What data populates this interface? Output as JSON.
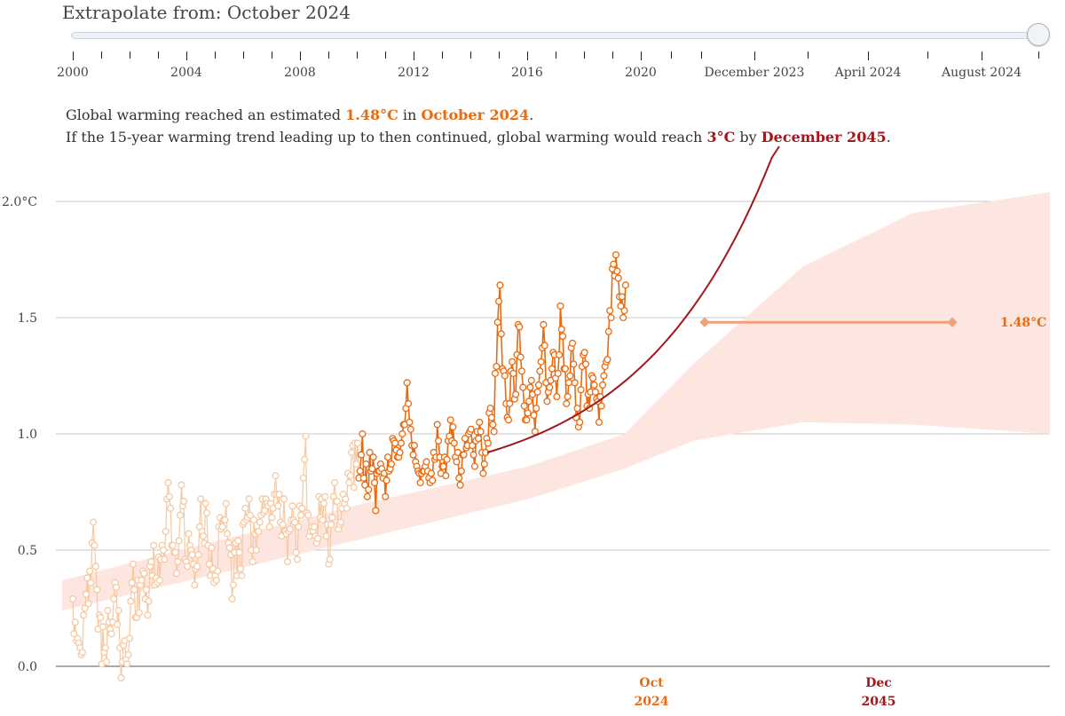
{
  "slider": {
    "title": "Extrapolate from: October 2024",
    "ticks": [
      {
        "label": "2000"
      },
      {
        "label": "2004"
      },
      {
        "label": "2008"
      },
      {
        "label": "2012"
      },
      {
        "label": "2016"
      },
      {
        "label": "2020"
      },
      {
        "label": "December 2023"
      },
      {
        "label": "April 2024"
      },
      {
        "label": "August 2024"
      }
    ],
    "value": 1.0
  },
  "summary": {
    "line1_pre": "Global warming reached an estimated ",
    "warming_value": "1.48°C",
    "line1_mid": " in ",
    "warming_date": "October 2024",
    "line1_end": ".",
    "line2_pre": "If the 15-year warming trend leading up to then continued, global warming would reach ",
    "target_value": "3°C",
    "line2_mid": " by ",
    "target_date": "December 2045",
    "line2_end": "."
  },
  "colors": {
    "orange": "#ea6a10",
    "orange_faded": "#f6c9a3",
    "band": "#fde6df",
    "trend": "#a3161b",
    "marker": "#f0a07a"
  },
  "chart_data": {
    "type": "scatter",
    "y_ticks": [
      {
        "value": 2.0,
        "label": "2.0°C"
      },
      {
        "value": 1.5,
        "label": "1.5"
      },
      {
        "value": 1.0,
        "label": "1.0"
      },
      {
        "value": 0.5,
        "label": "0.5"
      },
      {
        "value": 0.0,
        "label": "0.0"
      }
    ],
    "ylim": [
      0.0,
      2.0
    ],
    "xlim": [
      1999.5,
      2017.5
    ],
    "x_labels": [
      {
        "x": 2009.75,
        "line1": "Oct",
        "line2": "2024",
        "color": "#ea6a10"
      },
      {
        "x": 2016.75,
        "line1": "Dec",
        "line2": "2045",
        "color": "#a3161b"
      }
    ],
    "current_level": {
      "value": 1.48,
      "label": "1.48°C",
      "x_start": 2011.3,
      "x_end": 2019.0
    },
    "trend": {
      "x_start": 2000.0,
      "x_end": 2010.3,
      "y_start": 0.92,
      "y_end": 3.0
    },
    "band_upper": [
      [
        1999.5,
        0.37
      ],
      [
        2002,
        0.52
      ],
      [
        2005,
        0.7
      ],
      [
        2008,
        0.86
      ],
      [
        2009.75,
        1.0
      ],
      [
        2011,
        1.3
      ],
      [
        2013,
        1.72
      ],
      [
        2015,
        1.95
      ],
      [
        2017.5,
        2.04
      ]
    ],
    "band_lower": [
      [
        1999.5,
        0.24
      ],
      [
        2002,
        0.38
      ],
      [
        2005,
        0.55
      ],
      [
        2008,
        0.72
      ],
      [
        2009.75,
        0.85
      ],
      [
        2011,
        0.97
      ],
      [
        2013,
        1.05
      ],
      [
        2015,
        1.04
      ],
      [
        2017.5,
        1.0
      ]
    ],
    "monthly_anomaly": {
      "start_year": 1990.0,
      "step_years": 0.0833,
      "highlight_from_year": 2009.75,
      "values": [
        0.29,
        0.14,
        0.19,
        0.11,
        0.12,
        0.1,
        0.08,
        0.05,
        0.06,
        0.22,
        0.25,
        0.31,
        0.38,
        0.27,
        0.41,
        0.36,
        0.53,
        0.62,
        0.52,
        0.43,
        0.33,
        0.16,
        0.22,
        0.21,
        0.01,
        0.17,
        0.06,
        0.08,
        0.02,
        0.24,
        0.19,
        0.16,
        0.14,
        0.19,
        0.29,
        0.36,
        0.34,
        0.18,
        0.24,
        0.08,
        -0.05,
        0.02,
        0.09,
        0.11,
        0.03,
        0.01,
        0.05,
        0.12,
        0.28,
        0.36,
        0.44,
        0.33,
        0.21,
        0.21,
        0.37,
        0.23,
        0.35,
        0.37,
        0.41,
        0.4,
        0.29,
        0.33,
        0.22,
        0.28,
        0.43,
        0.45,
        0.39,
        0.52,
        0.35,
        0.38,
        0.36,
        0.47,
        0.37,
        0.46,
        0.52,
        0.5,
        0.46,
        0.58,
        0.72,
        0.79,
        0.73,
        0.68,
        0.52,
        0.52,
        0.49,
        0.49,
        0.4,
        0.45,
        0.54,
        0.65,
        0.78,
        0.69,
        0.71,
        0.46,
        0.45,
        0.43,
        0.57,
        0.52,
        0.5,
        0.48,
        0.44,
        0.35,
        0.42,
        0.43,
        0.48,
        0.6,
        0.72,
        0.58,
        0.56,
        0.53,
        0.7,
        0.66,
        0.52,
        0.44,
        0.39,
        0.51,
        0.42,
        0.36,
        0.39,
        0.37,
        0.41,
        0.6,
        0.64,
        0.59,
        0.6,
        0.63,
        0.63,
        0.7,
        0.57,
        0.53,
        0.51,
        0.48,
        0.29,
        0.35,
        0.49,
        0.53,
        0.39,
        0.54,
        0.49,
        0.42,
        0.39,
        0.61,
        0.62,
        0.68,
        0.63,
        0.64,
        0.72,
        0.65,
        0.5,
        0.45,
        0.63,
        0.57,
        0.5,
        0.58,
        0.58,
        0.62,
        0.65,
        0.72,
        0.66,
        0.67,
        0.72,
        0.7,
        0.69,
        0.6,
        0.7,
        0.64,
        0.68,
        0.74,
        0.82,
        0.74,
        0.69,
        0.74,
        0.62,
        0.56,
        0.61,
        0.72,
        0.58,
        0.57,
        0.45,
        0.58,
        0.59,
        0.63,
        0.69,
        0.63,
        0.62,
        0.49,
        0.46,
        0.6,
        0.69,
        0.65,
        0.68,
        0.81,
        0.89,
        0.99,
        0.66,
        0.65,
        0.56,
        0.58,
        0.6,
        0.58,
        0.6,
        0.56,
        0.53,
        0.55,
        0.73,
        0.64,
        0.72,
        0.63,
        0.7,
        0.73,
        0.56,
        0.61,
        0.44,
        0.46,
        0.61,
        0.64,
        0.73,
        0.79,
        0.71,
        0.71,
        0.59,
        0.61,
        0.62,
        0.68,
        0.74,
        0.7,
        0.72,
        0.68,
        0.83,
        0.79,
        0.82,
        0.92,
        0.95,
        0.77,
        0.96,
        0.87,
        0.96,
        0.81,
        0.84,
        0.91,
        1.0,
        0.81,
        0.78,
        0.87,
        0.73,
        0.76,
        0.92,
        0.84,
        0.85,
        0.9,
        0.79,
        0.67,
        0.83,
        0.84,
        0.84,
        0.87,
        0.85,
        0.81,
        0.83,
        0.73,
        0.8,
        0.9,
        0.84,
        0.85,
        0.87,
        0.98,
        0.97,
        0.96,
        0.93,
        0.9,
        0.9,
        0.92,
        0.96,
        1.0,
        1.04,
        1.04,
        1.11,
        1.22,
        1.13,
        1.05,
        1.02,
        0.95,
        0.91,
        0.95,
        0.88,
        0.86,
        0.84,
        0.83,
        0.79,
        0.83,
        0.84,
        0.84,
        0.86,
        0.88,
        0.84,
        0.81,
        0.79,
        0.83,
        0.8,
        0.92,
        0.89,
        0.9,
        1.04,
        0.97,
        0.9,
        0.83,
        0.86,
        0.86,
        0.9,
        0.82,
        0.89,
        0.97,
        0.99,
        1.06,
        0.97,
        1.03,
        0.96,
        0.9,
        0.88,
        0.92,
        0.81,
        0.78,
        0.84,
        0.91,
        0.91,
        0.98,
        0.94,
        0.95,
        1.0,
        1.01,
        1.02,
        0.95,
        0.91,
        0.86,
        0.97,
        1.01,
        0.98,
        1.05,
        1.01,
        0.92,
        0.83,
        0.87,
        0.92,
        0.98,
        0.96,
        1.09,
        1.11,
        1.07,
        1.04,
        1.01,
        1.26,
        1.29,
        1.48,
        1.57,
        1.64,
        1.43,
        1.28,
        1.27,
        1.25,
        1.13,
        1.07,
        1.06,
        1.13,
        1.27,
        1.31,
        1.26,
        1.15,
        1.17,
        1.34,
        1.47,
        1.46,
        1.33,
        1.27,
        1.2,
        1.12,
        1.06,
        1.06,
        1.09,
        1.14,
        1.2,
        1.23,
        1.17,
        1.08,
        1.01,
        1.11,
        1.18,
        1.21,
        1.27,
        1.31,
        1.37,
        1.47,
        1.38,
        1.22,
        1.14,
        1.18,
        1.2,
        1.23,
        1.28,
        1.35,
        1.34,
        1.24,
        1.16,
        1.26,
        1.34,
        1.55,
        1.45,
        1.42,
        1.28,
        1.28,
        1.13,
        1.16,
        1.22,
        1.25,
        1.37,
        1.39,
        1.3,
        1.22,
        1.07,
        1.11,
        1.03,
        1.05,
        1.19,
        1.29,
        1.34,
        1.35,
        1.3,
        1.12,
        1.17,
        1.11,
        1.18,
        1.25,
        1.24,
        1.21,
        1.18,
        1.15,
        1.14,
        1.05,
        1.16,
        1.12,
        1.21,
        1.25,
        1.29,
        1.31,
        1.32,
        1.44,
        1.53,
        1.5,
        1.71,
        1.73,
        1.68,
        1.77,
        1.7,
        1.67,
        1.59,
        1.55,
        1.59,
        1.5,
        1.53,
        1.64
      ]
    }
  }
}
